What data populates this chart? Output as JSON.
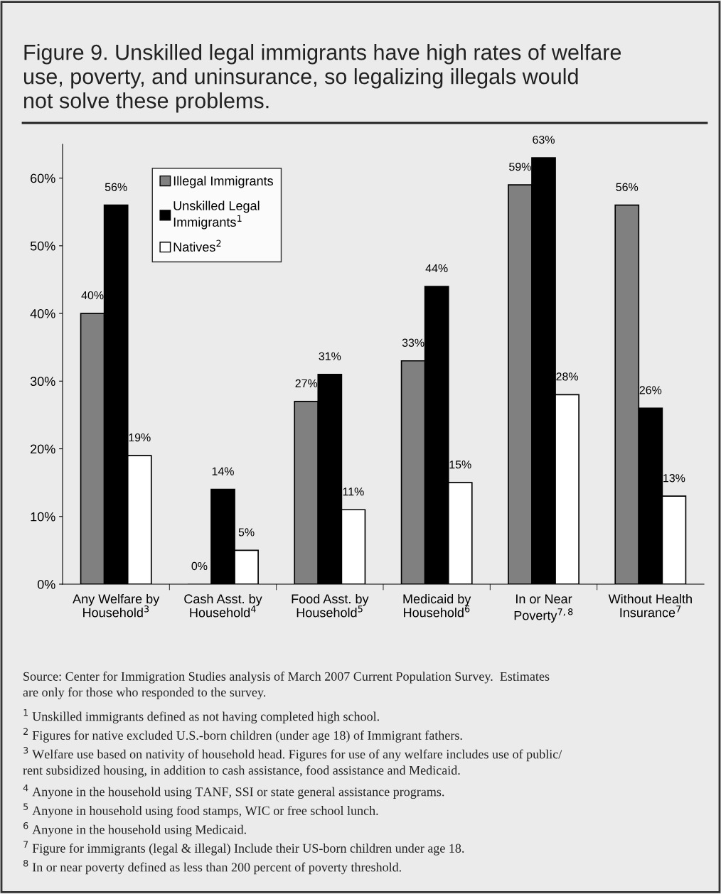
{
  "chart_data": {
    "type": "bar",
    "title": "Figure 9. Unskilled legal immigrants have high rates of welfare\nuse, poverty, and uninsurance, so legalizing illegals would\nnot solve these problems.",
    "categories": [
      "Any Welfare by\nHousehold$^{3}$",
      "Cash Asst. by\nHousehold$^{4}$",
      "Food Asst. by\nHousehold$^{5}$",
      "Medicaid by\nHousehold$^{6}$",
      "In or Near\nPoverty$^{7,8}$",
      "Without Health\nInsurance$^{7}$"
    ],
    "series": [
      {
        "name": "Illegal Immigrants",
        "color": "#808080",
        "values": [
          40,
          0,
          27,
          33,
          59,
          56
        ],
        "value_labels": [
          "40%",
          "0%",
          "27%",
          "33%",
          "59%",
          "56%"
        ]
      },
      {
        "name": "Unskilled Legal\nImmigrants$^{1}$",
        "color": "#000000",
        "values": [
          56,
          14,
          31,
          44,
          63,
          26
        ],
        "value_labels": [
          "56%",
          "14%",
          "31%",
          "44%",
          "63%",
          "26%"
        ]
      },
      {
        "name": "Natives$^{2}$",
        "color": "#ffffff",
        "values": [
          19,
          5,
          11,
          15,
          28,
          13
        ],
        "value_labels": [
          "19%",
          "5%",
          "11%",
          "15%",
          "28%",
          "13%"
        ]
      }
    ],
    "ylim": [
      0,
      65
    ],
    "yticks": [
      {
        "value": 0,
        "label": "0%"
      },
      {
        "value": 10,
        "label": "10%"
      },
      {
        "value": 20,
        "label": "20%"
      },
      {
        "value": 30,
        "label": "30%"
      },
      {
        "value": 40,
        "label": "40%"
      },
      {
        "value": 50,
        "label": "50%"
      },
      {
        "value": 60,
        "label": "60%"
      }
    ],
    "grid": false,
    "legend": "top left",
    "annotations": [
      "Source: Center for Immigration Studies analysis of March 2007 Current Population Survey.  Estimates\nare only for those who responded to the survey.",
      "$^{1}$ Unskilled immigrants defined as not having completed high school.",
      "$^{2}$ Figures for native excluded U.S.-born children (under age 18) of Immigrant fathers.",
      "$^{3}$ Welfare use based on nativity of household head. Figures for use of any welfare includes use of public/\nrent subsidized housing, in addition to cash assistance, food assistance and Medicaid.",
      "$^{4}$ Anyone in the household using TANF, SSI or state general assistance programs.",
      "$^{5}$ Anyone in household using food stamps, WIC or free school lunch.",
      "$^{6}$ Anyone in the household using Medicaid.",
      "$^{7}$ Figure for immigrants (legal & illegal) Include their US-born children under age 18.",
      "$^{8}$ In or near poverty defined as less than 200 percent of poverty threshold."
    ]
  }
}
